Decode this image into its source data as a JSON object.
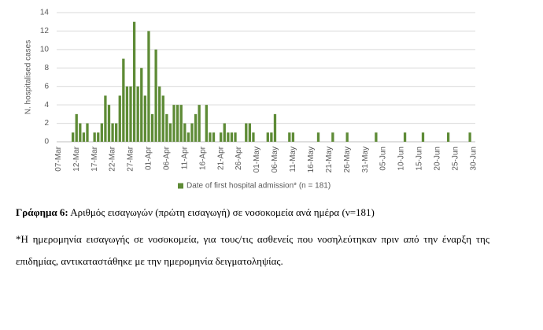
{
  "chart_data": {
    "type": "bar",
    "y_label": "N. hospitalised cases",
    "categories": [
      "07-Mar",
      null,
      null,
      null,
      null,
      "12-Mar",
      null,
      null,
      null,
      null,
      "17-Mar",
      null,
      null,
      null,
      null,
      "22-Mar",
      null,
      null,
      null,
      null,
      "27-Mar",
      null,
      null,
      null,
      null,
      "01-Apr",
      null,
      null,
      null,
      null,
      "06-Apr",
      null,
      null,
      null,
      null,
      "11-Apr",
      null,
      null,
      null,
      null,
      "16-Apr",
      null,
      null,
      null,
      null,
      "21-Apr",
      null,
      null,
      null,
      null,
      "26-Apr",
      null,
      null,
      null,
      null,
      "01-May",
      null,
      null,
      null,
      null,
      "06-May",
      null,
      null,
      null,
      null,
      "11-May",
      null,
      null,
      null,
      null,
      "16-May",
      null,
      null,
      null,
      null,
      "21-May",
      null,
      null,
      null,
      null,
      "26-May",
      null,
      null,
      null,
      null,
      "31-May",
      null,
      null,
      null,
      null,
      "05-Jun",
      null,
      null,
      null,
      null,
      "10-Jun",
      null,
      null,
      null,
      null,
      "15-Jun",
      null,
      null,
      null,
      null,
      "20-Jun",
      null,
      null,
      null,
      null,
      "25-Jun",
      null,
      null,
      null,
      null,
      "30-Jun"
    ],
    "series": [
      {
        "name": "Date of first hospital admission* (n = 181)",
        "color": "#5e8b36",
        "values": [
          0,
          0,
          0,
          0,
          1,
          3,
          2,
          1,
          2,
          0,
          1,
          1,
          2,
          5,
          4,
          2,
          2,
          5,
          9,
          6,
          6,
          13,
          6,
          8,
          5,
          12,
          3,
          10,
          6,
          5,
          3,
          2,
          4,
          4,
          4,
          2,
          1,
          2,
          3,
          4,
          0,
          4,
          1,
          1,
          0,
          1,
          2,
          1,
          1,
          1,
          0,
          0,
          2,
          2,
          1,
          0,
          0,
          0,
          1,
          1,
          3,
          0,
          0,
          0,
          1,
          1,
          0,
          0,
          0,
          0,
          0,
          0,
          1,
          0,
          0,
          0,
          1,
          0,
          0,
          0,
          1,
          0,
          0,
          0,
          0,
          0,
          0,
          0,
          1,
          0,
          0,
          0,
          0,
          0,
          0,
          0,
          1,
          0,
          0,
          0,
          0,
          1,
          0,
          0,
          0,
          0,
          0,
          0,
          1,
          0,
          0,
          0,
          0,
          0,
          1,
          0
        ]
      }
    ],
    "ylim": [
      0,
      14
    ],
    "yticks": [
      0,
      2,
      4,
      6,
      8,
      10,
      12,
      14
    ],
    "grid": true,
    "legend": "bottom"
  },
  "document": {
    "caption_label": "Γράφημα 6:",
    "caption": "Αριθμός εισαγωγών (πρώτη εισαγωγή) σε νοσοκομεία ανά ημέρα (ν=181)",
    "note": "*Η ημερομηνία εισαγωγής σε νοσοκομεία, για τους/τις ασθενείς που νοσηλεύτηκαν πριν από την έναρξη της επιδημίας, αντικαταστάθηκε με την ημερομηνία δειγματοληψίας."
  }
}
